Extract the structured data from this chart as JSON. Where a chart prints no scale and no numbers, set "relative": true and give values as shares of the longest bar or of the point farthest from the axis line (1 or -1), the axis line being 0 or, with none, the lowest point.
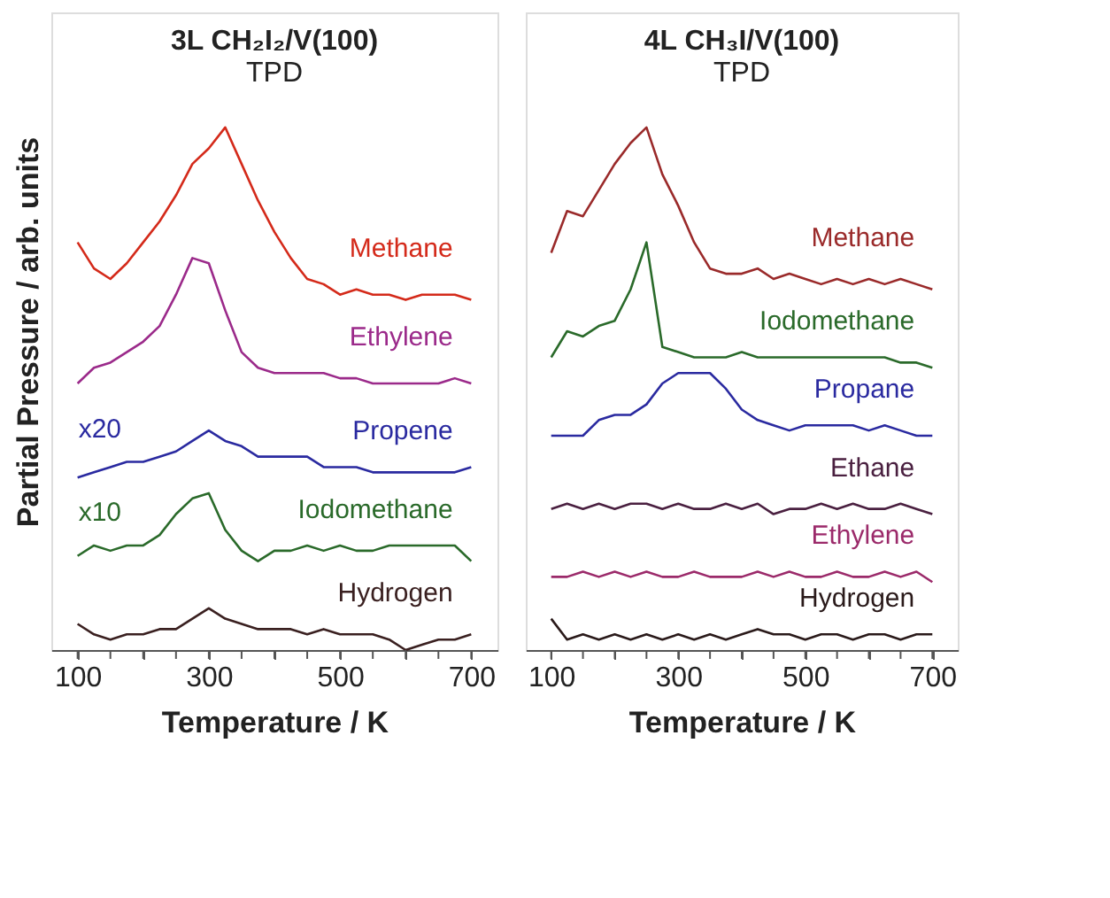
{
  "chart_data": [
    {
      "type": "line",
      "title": "3L CH₂I₂/V(100)",
      "subtitle": "TPD",
      "xlabel": "Temperature / K",
      "ylabel": "Partial Pressure / arb. units",
      "relative": true,
      "grid": false,
      "tick_labels": "x",
      "marker": "none",
      "line_style": "solid",
      "xlim": [
        60,
        740
      ],
      "xticks": [
        100,
        {
          "value": 150,
          "label": null
        },
        {
          "value": 200,
          "label": null
        },
        {
          "value": 250,
          "label": null
        },
        300,
        {
          "value": 350,
          "label": null
        },
        {
          "value": 400,
          "label": null
        },
        {
          "value": 450,
          "label": null
        },
        500,
        {
          "value": 550,
          "label": null
        },
        {
          "value": 600,
          "label": null
        },
        {
          "value": 650,
          "label": null
        },
        700
      ],
      "x": [
        100,
        125,
        150,
        175,
        200,
        225,
        250,
        275,
        300,
        325,
        350,
        375,
        400,
        425,
        450,
        475,
        500,
        525,
        550,
        575,
        600,
        625,
        650,
        675,
        700
      ],
      "annotations": [
        "x20",
        "x10"
      ],
      "series": [
        {
          "name": "Methane",
          "color": "#d42a1a",
          "values": [
            0.78,
            0.73,
            0.71,
            0.74,
            0.78,
            0.82,
            0.87,
            0.93,
            0.96,
            1.0,
            0.93,
            0.86,
            0.8,
            0.75,
            0.71,
            0.7,
            0.68,
            0.69,
            0.68,
            0.68,
            0.67,
            0.68,
            0.68,
            0.68,
            0.67
          ]
        },
        {
          "name": "Ethylene",
          "color": "#9b2a8a",
          "values": [
            0.51,
            0.54,
            0.55,
            0.57,
            0.59,
            0.62,
            0.68,
            0.75,
            0.74,
            0.65,
            0.57,
            0.54,
            0.53,
            0.53,
            0.53,
            0.53,
            0.52,
            0.52,
            0.51,
            0.51,
            0.51,
            0.51,
            0.51,
            0.52,
            0.51
          ]
        },
        {
          "name": "Propene",
          "color": "#2a2aa0",
          "values": [
            0.33,
            0.34,
            0.35,
            0.36,
            0.36,
            0.37,
            0.38,
            0.4,
            0.42,
            0.4,
            0.39,
            0.37,
            0.37,
            0.37,
            0.37,
            0.35,
            0.35,
            0.35,
            0.34,
            0.34,
            0.34,
            0.34,
            0.34,
            0.34,
            0.35
          ]
        },
        {
          "name": "Iodomethane",
          "color": "#2a6a2a",
          "values": [
            0.18,
            0.2,
            0.19,
            0.2,
            0.2,
            0.22,
            0.26,
            0.29,
            0.3,
            0.23,
            0.19,
            0.17,
            0.19,
            0.19,
            0.2,
            0.19,
            0.2,
            0.19,
            0.19,
            0.2,
            0.2,
            0.2,
            0.2,
            0.2,
            0.17
          ]
        },
        {
          "name": "Hydrogen",
          "color": "#3a2020",
          "values": [
            0.05,
            0.03,
            0.02,
            0.03,
            0.03,
            0.04,
            0.04,
            0.06,
            0.08,
            0.06,
            0.05,
            0.04,
            0.04,
            0.04,
            0.03,
            0.04,
            0.03,
            0.03,
            0.03,
            0.02,
            0.0,
            0.01,
            0.02,
            0.02,
            0.03
          ]
        }
      ]
    },
    {
      "type": "line",
      "title": "4L CH₃I/V(100)",
      "subtitle": "TPD",
      "xlabel": "Temperature / K",
      "relative": true,
      "grid": false,
      "tick_labels": "x",
      "marker": "none",
      "line_style": "solid",
      "xlim": [
        60,
        740
      ],
      "xticks": [
        100,
        {
          "value": 150,
          "label": null
        },
        {
          "value": 200,
          "label": null
        },
        {
          "value": 250,
          "label": null
        },
        300,
        {
          "value": 350,
          "label": null
        },
        {
          "value": 400,
          "label": null
        },
        {
          "value": 450,
          "label": null
        },
        500,
        {
          "value": 550,
          "label": null
        },
        {
          "value": 600,
          "label": null
        },
        {
          "value": 650,
          "label": null
        },
        700
      ],
      "x": [
        100,
        125,
        150,
        175,
        200,
        225,
        250,
        275,
        300,
        325,
        350,
        375,
        400,
        425,
        450,
        475,
        500,
        525,
        550,
        575,
        600,
        625,
        650,
        675,
        700
      ],
      "series": [
        {
          "name": "Methane",
          "color": "#9a2a2a",
          "values": [
            0.76,
            0.84,
            0.83,
            0.88,
            0.93,
            0.97,
            1.0,
            0.91,
            0.85,
            0.78,
            0.73,
            0.72,
            0.72,
            0.73,
            0.71,
            0.72,
            0.71,
            0.7,
            0.71,
            0.7,
            0.71,
            0.7,
            0.71,
            0.7,
            0.69
          ]
        },
        {
          "name": "Iodomethane",
          "color": "#2a6a2a",
          "values": [
            0.56,
            0.61,
            0.6,
            0.62,
            0.63,
            0.69,
            0.78,
            0.58,
            0.57,
            0.56,
            0.56,
            0.56,
            0.57,
            0.56,
            0.56,
            0.56,
            0.56,
            0.56,
            0.56,
            0.56,
            0.56,
            0.56,
            0.55,
            0.55,
            0.54
          ]
        },
        {
          "name": "Propane",
          "color": "#2a2aa0",
          "values": [
            0.41,
            0.41,
            0.41,
            0.44,
            0.45,
            0.45,
            0.47,
            0.51,
            0.53,
            0.53,
            0.53,
            0.5,
            0.46,
            0.44,
            0.43,
            0.42,
            0.43,
            0.43,
            0.43,
            0.43,
            0.42,
            0.43,
            0.42,
            0.41,
            0.41
          ]
        },
        {
          "name": "Ethane",
          "color": "#4a2040",
          "values": [
            0.27,
            0.28,
            0.27,
            0.28,
            0.27,
            0.28,
            0.28,
            0.27,
            0.28,
            0.27,
            0.27,
            0.28,
            0.27,
            0.28,
            0.26,
            0.27,
            0.27,
            0.28,
            0.27,
            0.28,
            0.27,
            0.27,
            0.28,
            0.27,
            0.26
          ]
        },
        {
          "name": "Ethylene",
          "color": "#9b2a6a",
          "values": [
            0.14,
            0.14,
            0.15,
            0.14,
            0.15,
            0.14,
            0.15,
            0.14,
            0.14,
            0.15,
            0.14,
            0.14,
            0.14,
            0.15,
            0.14,
            0.15,
            0.14,
            0.14,
            0.15,
            0.14,
            0.14,
            0.15,
            0.14,
            0.15,
            0.13
          ]
        },
        {
          "name": "Hydrogen",
          "color": "#2a1a1a",
          "values": [
            0.06,
            0.02,
            0.03,
            0.02,
            0.03,
            0.02,
            0.03,
            0.02,
            0.03,
            0.02,
            0.03,
            0.02,
            0.03,
            0.04,
            0.03,
            0.03,
            0.02,
            0.03,
            0.03,
            0.02,
            0.03,
            0.03,
            0.02,
            0.03,
            0.03
          ]
        }
      ]
    }
  ]
}
